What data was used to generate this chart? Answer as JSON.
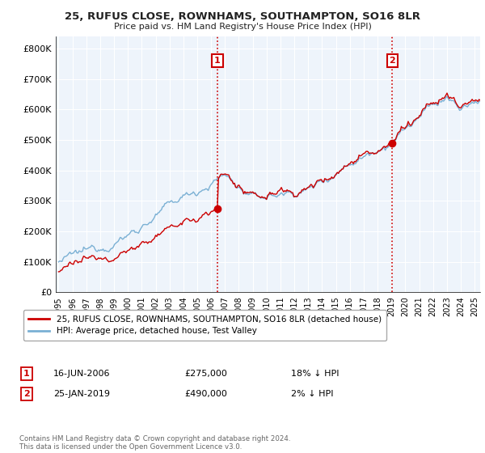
{
  "title": "25, RUFUS CLOSE, ROWNHAMS, SOUTHAMPTON, SO16 8LR",
  "subtitle": "Price paid vs. HM Land Registry's House Price Index (HPI)",
  "ylabel_ticks": [
    "£0",
    "£100K",
    "£200K",
    "£300K",
    "£400K",
    "£500K",
    "£600K",
    "£700K",
    "£800K"
  ],
  "ytick_values": [
    0,
    100000,
    200000,
    300000,
    400000,
    500000,
    600000,
    700000,
    800000
  ],
  "ylim": [
    0,
    840000
  ],
  "xlim_start": 1994.8,
  "xlim_end": 2025.4,
  "sale1_year": 2006.46,
  "sale1_price": 275000,
  "sale1_label": "16-JUN-2006",
  "sale1_amount": "£275,000",
  "sale1_note": "18% ↓ HPI",
  "sale2_year": 2019.07,
  "sale2_price": 490000,
  "sale2_label": "25-JAN-2019",
  "sale2_amount": "£490,000",
  "sale2_note": "2% ↓ HPI",
  "legend_entry1": "25, RUFUS CLOSE, ROWNHAMS, SOUTHAMPTON, SO16 8LR (detached house)",
  "legend_entry2": "HPI: Average price, detached house, Test Valley",
  "footer": "Contains HM Land Registry data © Crown copyright and database right 2024.\nThis data is licensed under the Open Government Licence v3.0.",
  "line_color_red": "#cc0000",
  "line_color_blue": "#7ab0d4",
  "vline_color": "#cc0000",
  "background_color": "#ffffff",
  "plot_bg_color": "#eef4fb",
  "grid_color": "#ffffff"
}
